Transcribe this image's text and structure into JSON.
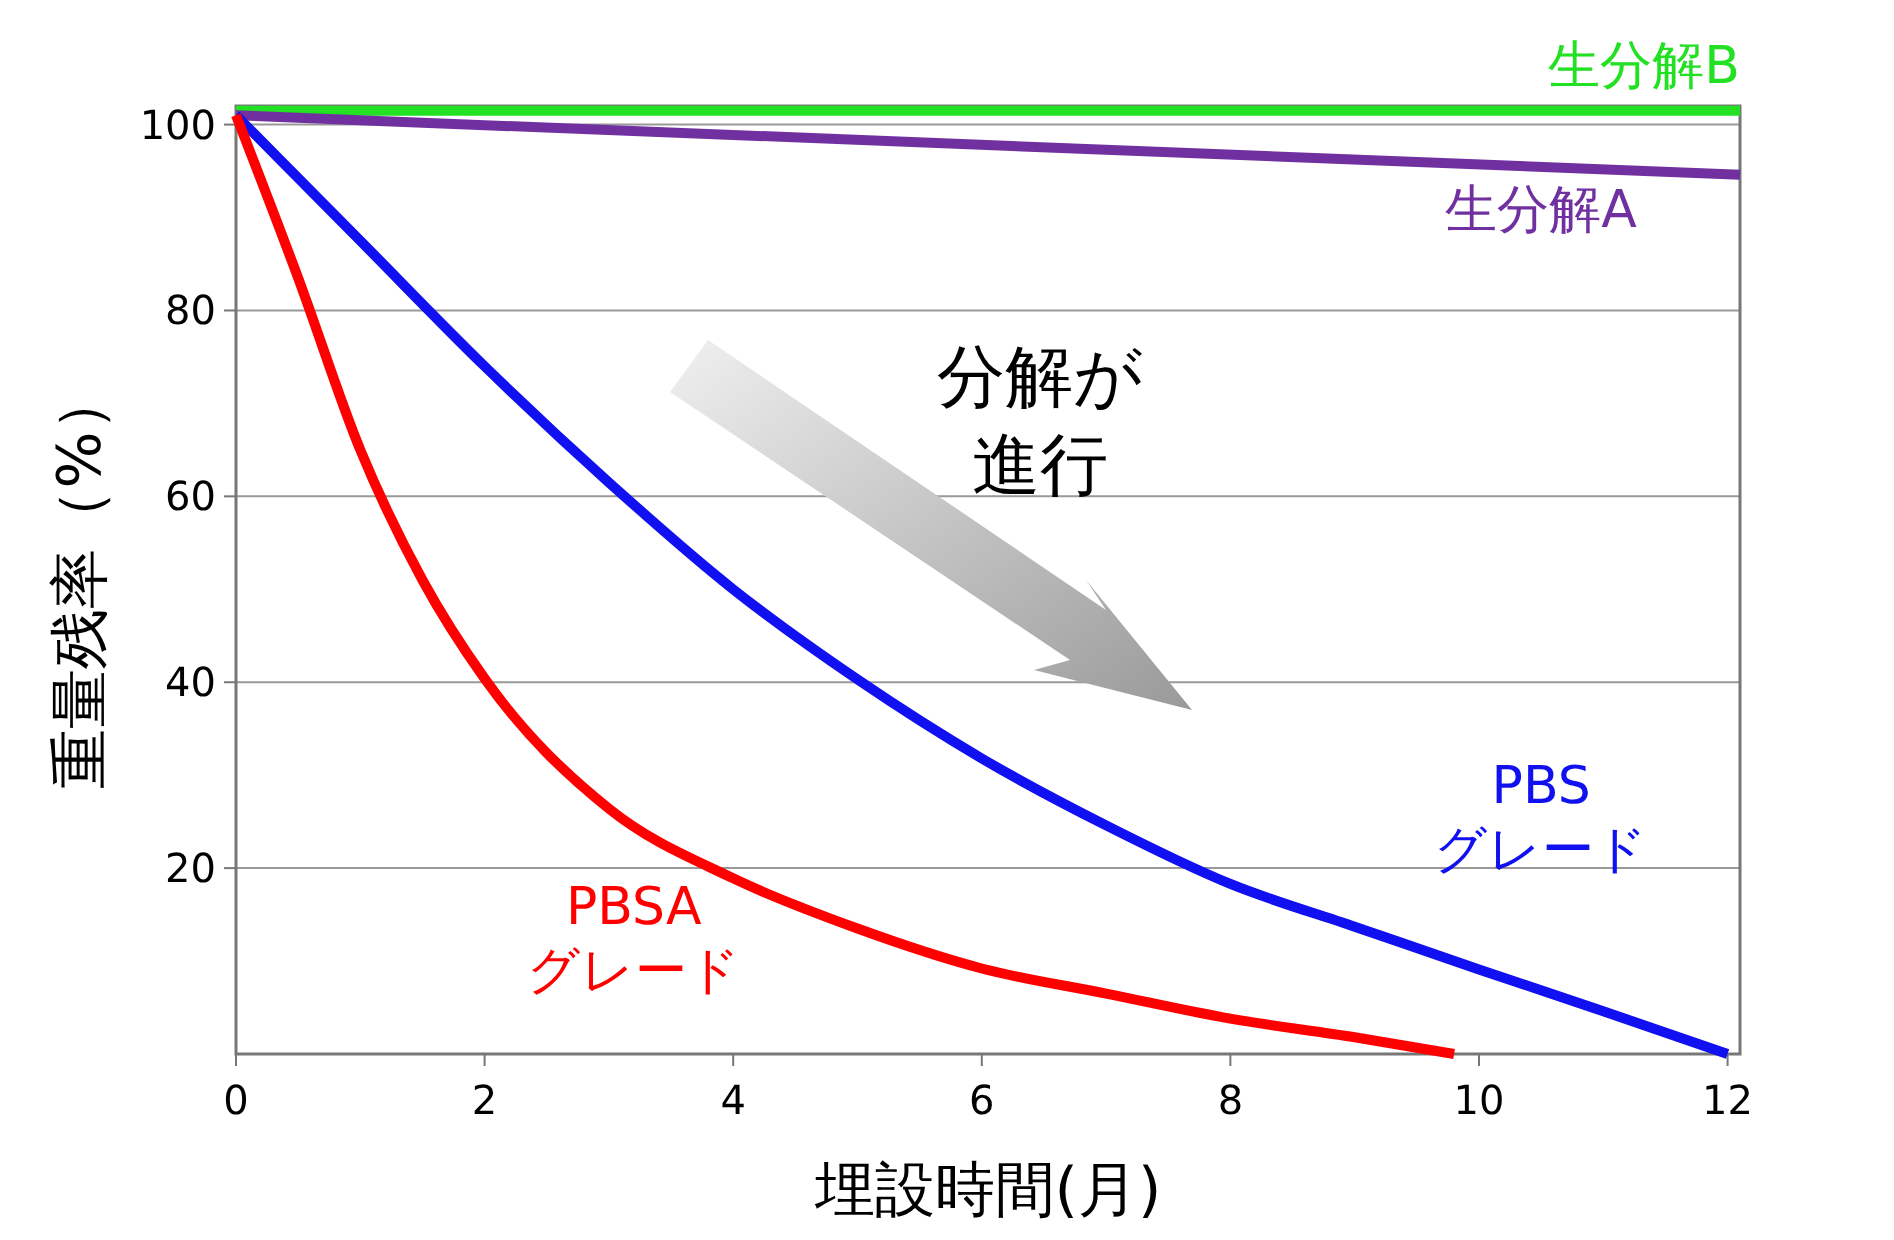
{
  "chart_data": {
    "type": "line",
    "xlabel": "埋設時間(月)",
    "ylabel": "重量残率（%）",
    "xlim": [
      0,
      12.1
    ],
    "ylim": [
      0,
      102
    ],
    "xticks": [
      0,
      2,
      4,
      6,
      8,
      10,
      12
    ],
    "yticks": [
      20,
      40,
      60,
      80,
      100
    ],
    "grid": "y",
    "legend": false,
    "line_style": "solid",
    "series": [
      {
        "name": "生分解B",
        "color": "#22e022",
        "x": [
          0,
          12.1
        ],
        "values": [
          101.5,
          101.5
        ]
      },
      {
        "name": "生分解A",
        "color": "#7030a0",
        "x": [
          0,
          12.1
        ],
        "values": [
          101,
          94.6
        ]
      },
      {
        "name": "PBS\nグレード",
        "color": "#1010f0",
        "x": [
          0,
          1,
          2,
          3,
          4,
          5,
          6,
          7,
          8,
          9,
          10,
          11,
          12
        ],
        "values": [
          101,
          87.5,
          74,
          61.5,
          50,
          40.3,
          31.8,
          24.6,
          18.3,
          13.7,
          9.1,
          4.6,
          0
        ]
      },
      {
        "name": "PBSA\nグレード",
        "color": "#ff0000",
        "x": [
          0,
          0.5,
          1,
          1.5,
          2,
          3,
          4,
          5,
          6,
          7,
          8,
          9,
          9.8
        ],
        "values": [
          101,
          83.5,
          65,
          51,
          40.4,
          26.4,
          18.9,
          13.5,
          9.2,
          6.5,
          3.8,
          1.8,
          0
        ]
      }
    ],
    "annotations": [
      "分解が",
      "進行"
    ]
  }
}
